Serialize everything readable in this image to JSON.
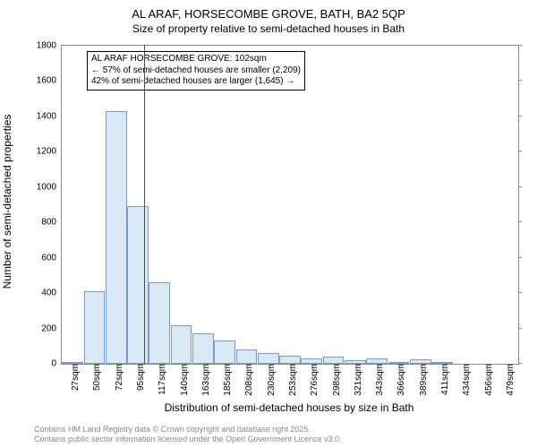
{
  "title": "AL ARAF, HORSECOMBE GROVE, BATH, BA2 5QP",
  "subtitle": "Size of property relative to semi-detached houses in Bath",
  "ylabel": "Number of semi-detached properties",
  "xlabel": "Distribution of semi-detached houses by size in Bath",
  "footer_line1": "Contains HM Land Registry data © Crown copyright and database right 2025.",
  "footer_line2": "Contains public sector information licensed under the Open Government Licence v3.0.",
  "annotation": {
    "line1": "AL ARAF HORSECOMBE GROVE: 102sqm",
    "line2": "← 57% of semi-detached houses are smaller (2,209)",
    "line3": "42% of semi-detached houses are larger (1,645) →"
  },
  "chart": {
    "type": "histogram",
    "x_categories": [
      "27sqm",
      "50sqm",
      "72sqm",
      "95sqm",
      "117sqm",
      "140sqm",
      "163sqm",
      "185sqm",
      "208sqm",
      "230sqm",
      "253sqm",
      "276sqm",
      "298sqm",
      "321sqm",
      "343sqm",
      "366sqm",
      "389sqm",
      "411sqm",
      "434sqm",
      "456sqm",
      "479sqm"
    ],
    "values": [
      10,
      410,
      1430,
      890,
      460,
      220,
      170,
      130,
      80,
      60,
      45,
      30,
      40,
      20,
      30,
      10,
      25,
      8,
      0,
      0,
      0
    ],
    "ylim": [
      0,
      1800
    ],
    "yticks": [
      0,
      200,
      400,
      600,
      800,
      1000,
      1200,
      1400,
      1600,
      1800
    ],
    "bar_fill": "#dae8f5",
    "bar_stroke": "#7a9cc6",
    "refline_x_index": 3.3,
    "refline_color": "#ff0000",
    "background": "#ffffff",
    "border_color": "#888888",
    "tick_fontsize": 10,
    "label_fontsize": 12,
    "title_fontsize": 13,
    "annotation_fontsize": 10
  }
}
